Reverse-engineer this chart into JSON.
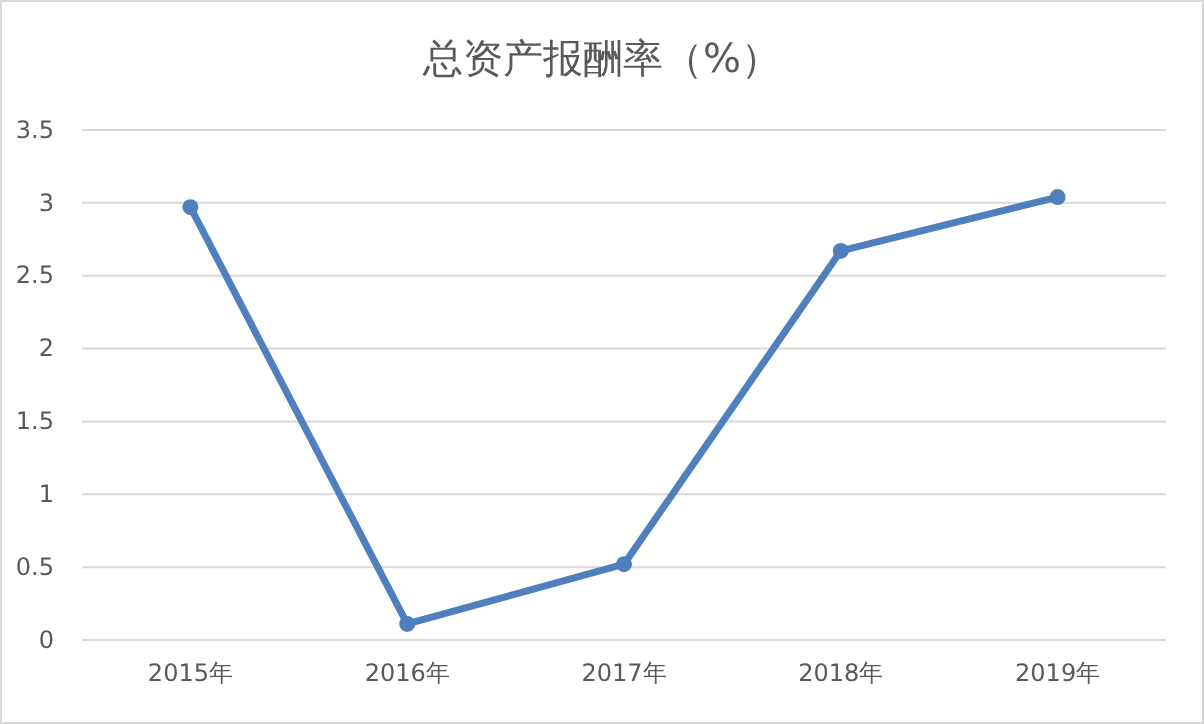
{
  "chart_data": {
    "type": "line",
    "title": "总资产报酬率（%）",
    "categories": [
      "2015年",
      "2016年",
      "2017年",
      "2018年",
      "2019年"
    ],
    "series": [
      {
        "color": "#4f7fbc",
        "values": [
          2.97,
          0.11,
          0.52,
          2.67,
          3.04
        ]
      }
    ],
    "ylim": [
      0,
      3.5
    ],
    "yticks": [
      0,
      0.5,
      1,
      1.5,
      2,
      2.5,
      3,
      3.5
    ],
    "grid": "y",
    "marker": "circle",
    "line_style": "solid"
  }
}
